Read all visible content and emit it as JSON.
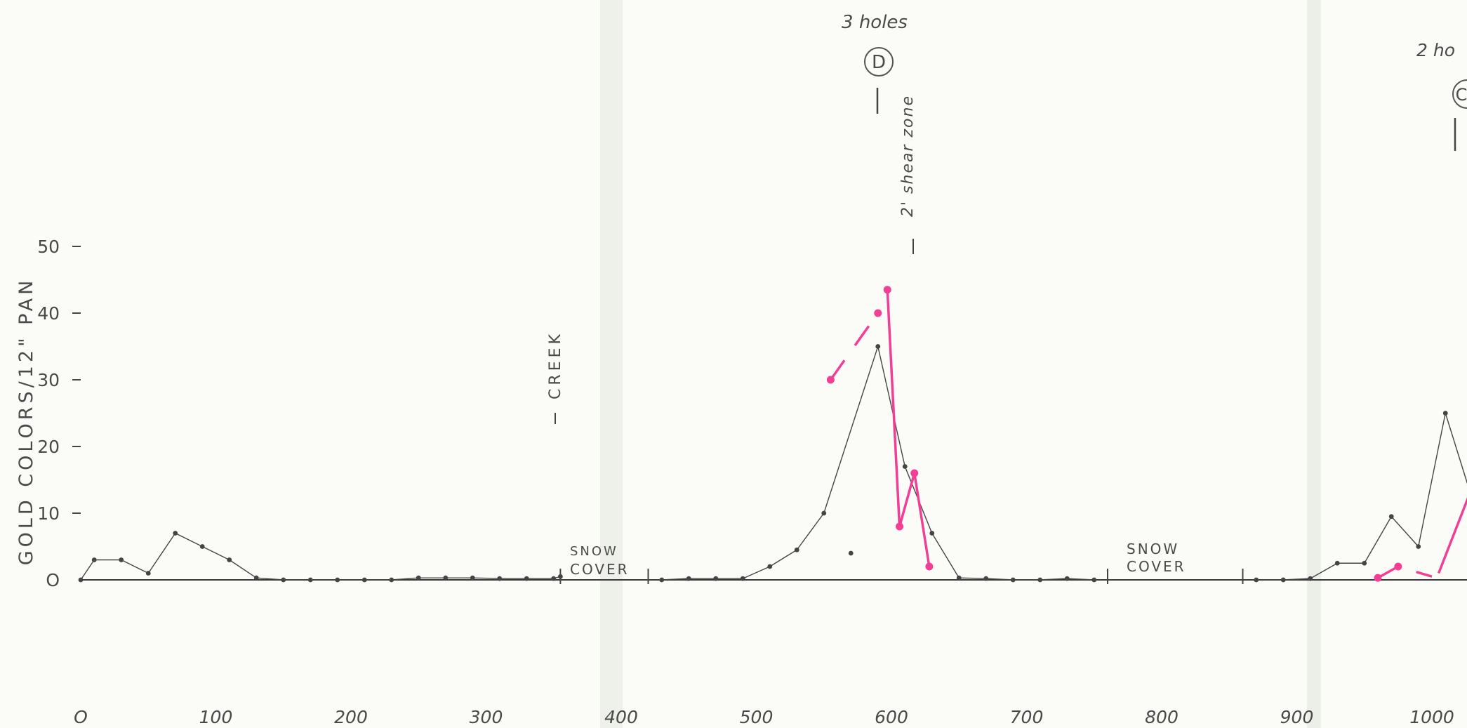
{
  "chart_data": {
    "type": "line",
    "ylabel": "GOLD COLORS/12\" PAN",
    "xlabel": "",
    "title": "",
    "xlim": [
      0,
      1030
    ],
    "ylim": [
      0,
      50
    ],
    "xticks": [
      0,
      100,
      200,
      300,
      400,
      500,
      600,
      700,
      800,
      900,
      1000
    ],
    "xtick_labels": [
      "O",
      "100",
      "200",
      "300",
      "400",
      "500",
      "600",
      "700",
      "800",
      "900",
      "1000"
    ],
    "yticks": [
      0,
      10,
      20,
      30,
      40,
      50
    ],
    "ytick_labels": [
      "O",
      "10",
      "20",
      "30",
      "40",
      "50"
    ],
    "grid": false,
    "series": [
      {
        "color": "#444444",
        "segments": [
          {
            "x": [
              0,
              10,
              30,
              50,
              70,
              90,
              110,
              130,
              150,
              170,
              190,
              210,
              230,
              250,
              270,
              290,
              310,
              330,
              350,
              355
            ],
            "y": [
              0,
              3,
              3,
              1,
              7,
              5,
              3,
              0.3,
              0,
              0,
              0,
              0,
              0,
              0.3,
              0.3,
              0.3,
              0.2,
              0.2,
              0.2,
              0.5
            ]
          },
          {
            "x": [
              430,
              450,
              470,
              490,
              510,
              530,
              550,
              590,
              610,
              630,
              650,
              670,
              690,
              710,
              730,
              750
            ],
            "y": [
              0,
              0.2,
              0.2,
              0.2,
              2,
              4.5,
              10,
              35,
              17,
              7,
              0.3,
              0.2,
              0,
              0,
              0.2,
              0
            ]
          },
          {
            "x": [
              870,
              890,
              910,
              930,
              950,
              970,
              990,
              1010,
              1030
            ],
            "y": [
              0,
              0,
              0.2,
              2.5,
              2.5,
              9.5,
              5,
              25,
              12
            ]
          }
        ],
        "extra_points": [
          {
            "x": 570,
            "y": 4
          }
        ]
      },
      {
        "color": "#f23f95",
        "segments": [
          {
            "x": [
              555,
              590
            ],
            "y": [
              30,
              40
            ],
            "dashed": true
          },
          {
            "x": [
              597,
              606,
              617,
              628
            ],
            "y": [
              43.5,
              8,
              16,
              2
            ]
          },
          {
            "x": [
              960,
              975,
              1000
            ],
            "y": [
              0.3,
              2,
              0.5
            ],
            "dashed": true
          },
          {
            "x": [
              1005,
              1030
            ],
            "y": [
              1,
              14
            ]
          }
        ],
        "points": [
          {
            "x": 555,
            "y": 30
          },
          {
            "x": 590,
            "y": 40
          },
          {
            "x": 597,
            "y": 43.5
          },
          {
            "x": 606,
            "y": 8
          },
          {
            "x": 617,
            "y": 16
          },
          {
            "x": 628,
            "y": 2
          },
          {
            "x": 960,
            "y": 0.3
          },
          {
            "x": 975,
            "y": 2
          },
          {
            "x": 1030,
            "y": 14
          }
        ]
      }
    ],
    "annotations": [
      {
        "text": "3 holes",
        "x": 590,
        "y_text": "top"
      },
      {
        "text": "D",
        "x": 590,
        "circled": true
      },
      {
        "text": "2' shear zone",
        "x": 615,
        "vertical": true
      },
      {
        "text": "CREEK",
        "x": 350,
        "vertical": true
      },
      {
        "text": "SNOW",
        "x": 400
      },
      {
        "text": "COVER",
        "x": 400
      },
      {
        "text": "SNOW",
        "x": 800
      },
      {
        "text": "COVER",
        "x": 800
      },
      {
        "text": "2 ho",
        "x": 1000
      },
      {
        "text": "C",
        "x": 1030,
        "circled": true
      }
    ],
    "break_marks": [
      355,
      420,
      760,
      860
    ]
  }
}
